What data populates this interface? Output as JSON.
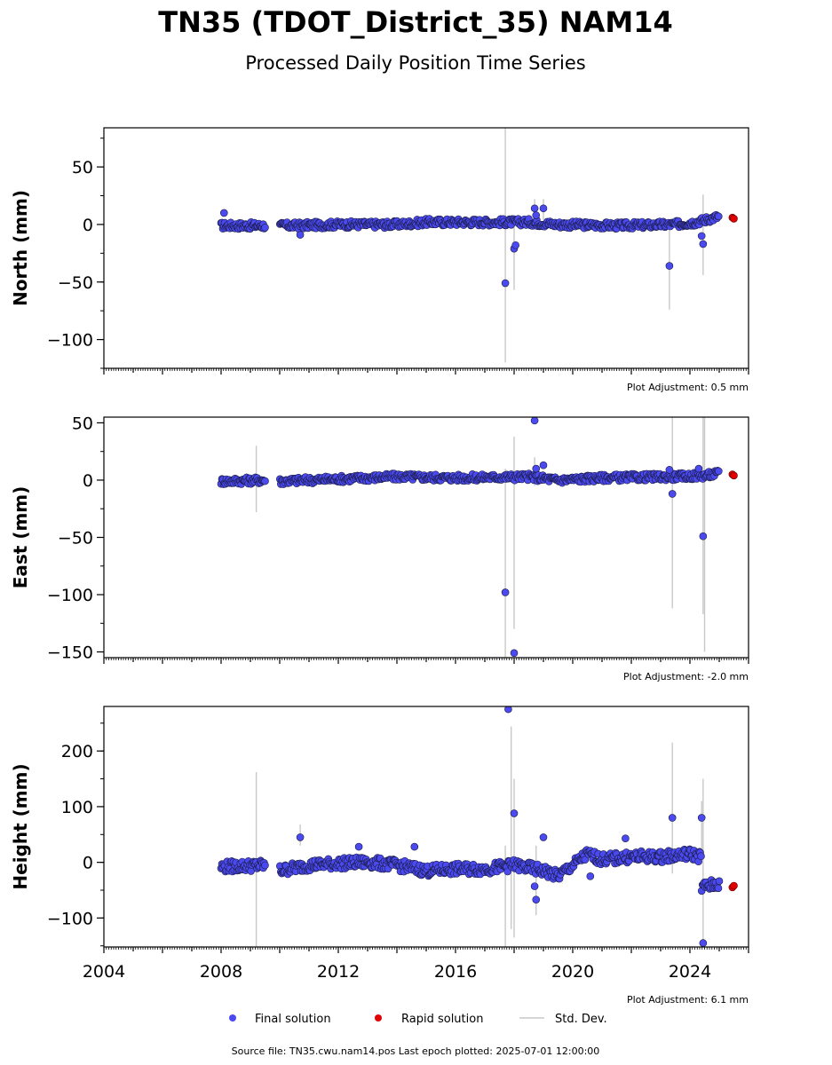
{
  "header": {
    "title": "TN35 (TDOT_District_35) NAM14",
    "subtitle": "Processed Daily Position Time Series"
  },
  "legend": {
    "final_label": "Final solution",
    "rapid_label": "Rapid solution",
    "stddev_label": "Std. Dev."
  },
  "footer": {
    "source": "Source file: TN35.cwu.nam14.pos  Last epoch plotted: 2025-07-01 12:00:00"
  },
  "colors": {
    "final": "#4a4af0",
    "rapid": "#e00000",
    "stddev": "#c8c8c8"
  },
  "chart_data": [
    {
      "type": "scatter",
      "ylabel": "North (mm)",
      "adjustment": "Plot Adjustment: 0.5 mm",
      "xlim": [
        2004.0,
        2026.0
      ],
      "ylim": [
        -125,
        84
      ],
      "yticks": [
        -100,
        -50,
        0,
        50
      ],
      "ytick_labels": [
        "−100",
        "−50",
        "0",
        "50"
      ],
      "band": [
        [
          2008.0,
          -1
        ],
        [
          2009.5,
          -1
        ],
        [
          2010.5,
          -1
        ],
        [
          2012.0,
          0
        ],
        [
          2014.0,
          0
        ],
        [
          2015.0,
          2
        ],
        [
          2017.0,
          2
        ],
        [
          2018.5,
          2
        ],
        [
          2019.5,
          0
        ],
        [
          2021.5,
          -1
        ],
        [
          2023.5,
          0
        ],
        [
          2024.2,
          2
        ],
        [
          2025.0,
          7
        ]
      ],
      "outliers": [
        [
          2008.1,
          10
        ],
        [
          2010.7,
          -9
        ],
        [
          2017.7,
          -51
        ],
        [
          2018.0,
          -21
        ],
        [
          2018.05,
          -18
        ],
        [
          2018.7,
          14
        ],
        [
          2018.75,
          8
        ],
        [
          2019.0,
          14
        ],
        [
          2023.3,
          -36
        ],
        [
          2024.4,
          -10
        ],
        [
          2024.45,
          -17
        ]
      ],
      "errorbars": [
        [
          2017.7,
          -120,
          84
        ],
        [
          2018.0,
          -57,
          -2
        ],
        [
          2018.7,
          -5,
          22
        ],
        [
          2019.0,
          4,
          22
        ],
        [
          2023.3,
          -74,
          0
        ],
        [
          2024.45,
          -44,
          26
        ]
      ],
      "rapid": [
        [
          2025.45,
          6
        ],
        [
          2025.5,
          5
        ]
      ],
      "show_xlabels": false
    },
    {
      "type": "scatter",
      "ylabel": "East (mm)",
      "adjustment": "Plot Adjustment: -2.0 mm",
      "xlim": [
        2004.0,
        2026.0
      ],
      "ylim": [
        -155,
        55
      ],
      "yticks": [
        -150,
        -100,
        -50,
        0,
        50
      ],
      "ytick_labels": [
        "−150",
        "−100",
        "−50",
        "0",
        "50"
      ],
      "band": [
        [
          2008.0,
          -1
        ],
        [
          2009.5,
          0
        ],
        [
          2010.0,
          -1
        ],
        [
          2012.0,
          1
        ],
        [
          2014.0,
          3
        ],
        [
          2016.0,
          2
        ],
        [
          2018.5,
          3
        ],
        [
          2019.5,
          0
        ],
        [
          2021.0,
          2
        ],
        [
          2023.5,
          3
        ],
        [
          2024.5,
          4
        ],
        [
          2025.0,
          6
        ]
      ],
      "outliers": [
        [
          2017.7,
          -98
        ],
        [
          2018.0,
          -151
        ],
        [
          2018.7,
          52
        ],
        [
          2018.75,
          10
        ],
        [
          2019.0,
          13
        ],
        [
          2023.3,
          9
        ],
        [
          2023.4,
          -12
        ],
        [
          2024.45,
          -49
        ],
        [
          2024.3,
          10
        ]
      ],
      "errorbars": [
        [
          2009.2,
          -28,
          30
        ],
        [
          2017.7,
          -155,
          10
        ],
        [
          2018.0,
          -130,
          38
        ],
        [
          2018.7,
          -5,
          20
        ],
        [
          2023.4,
          -112,
          55
        ],
        [
          2024.45,
          -117,
          55
        ],
        [
          2024.5,
          -150,
          55
        ]
      ],
      "rapid": [
        [
          2025.45,
          5
        ],
        [
          2025.5,
          4
        ]
      ],
      "show_xlabels": false
    },
    {
      "type": "scatter",
      "ylabel": "Height (mm)",
      "adjustment": "Plot Adjustment: 6.1 mm",
      "xlim": [
        2004.0,
        2026.0
      ],
      "ylim": [
        -152,
        280
      ],
      "yticks": [
        -100,
        0,
        100,
        200
      ],
      "ytick_labels": [
        "−100",
        "0",
        "100",
        "200"
      ],
      "xticks": [
        2004,
        2008,
        2012,
        2016,
        2020,
        2024
      ],
      "xtick_labels": [
        "2004",
        "2008",
        "2012",
        "2016",
        "2020",
        "2024"
      ],
      "band": [
        [
          2008.0,
          -8
        ],
        [
          2009.5,
          -5
        ],
        [
          2010.0,
          -15
        ],
        [
          2011.0,
          -5
        ],
        [
          2012.0,
          -2
        ],
        [
          2013.0,
          0
        ],
        [
          2014.0,
          -5
        ],
        [
          2015.0,
          -15
        ],
        [
          2016.0,
          -12
        ],
        [
          2017.0,
          -12
        ],
        [
          2018.0,
          -5
        ],
        [
          2019.0,
          -15
        ],
        [
          2019.5,
          -25
        ],
        [
          2020.0,
          -5
        ],
        [
          2020.5,
          15
        ],
        [
          2021.0,
          5
        ],
        [
          2022.0,
          10
        ],
        [
          2023.0,
          10
        ],
        [
          2024.0,
          15
        ],
        [
          2024.4,
          10
        ]
      ],
      "band2": [
        [
          2024.4,
          -45
        ],
        [
          2025.0,
          -38
        ]
      ],
      "outliers": [
        [
          2010.7,
          45
        ],
        [
          2012.7,
          28
        ],
        [
          2014.6,
          28
        ],
        [
          2017.8,
          275
        ],
        [
          2018.0,
          88
        ],
        [
          2018.7,
          -43
        ],
        [
          2018.75,
          -67
        ],
        [
          2019.0,
          45
        ],
        [
          2020.6,
          -25
        ],
        [
          2021.8,
          43
        ],
        [
          2023.4,
          80
        ],
        [
          2024.4,
          80
        ],
        [
          2024.45,
          -145
        ]
      ],
      "errorbars": [
        [
          2009.2,
          -152,
          162
        ],
        [
          2010.7,
          30,
          68
        ],
        [
          2017.7,
          -152,
          30
        ],
        [
          2017.9,
          -120,
          244
        ],
        [
          2018.0,
          -135,
          150
        ],
        [
          2018.75,
          -95,
          30
        ],
        [
          2023.4,
          -20,
          215
        ],
        [
          2024.4,
          0,
          110
        ],
        [
          2024.45,
          -152,
          150
        ]
      ],
      "rapid": [
        [
          2025.45,
          -45
        ],
        [
          2025.5,
          -42
        ]
      ],
      "show_xlabels": true
    }
  ]
}
